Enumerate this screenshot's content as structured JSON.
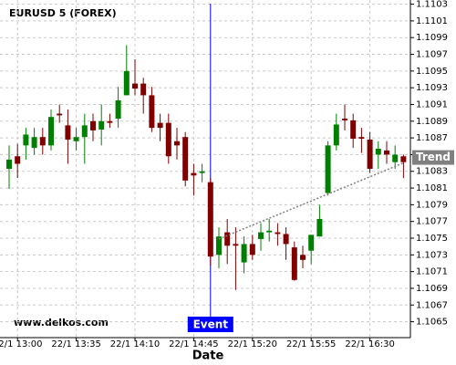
{
  "chart_data": {
    "type": "candlestick",
    "title": "EURUSD 5 (FOREX)",
    "xlabel": "Date",
    "watermark": "www.delkos.com",
    "categories": [
      null,
      "22/1 13:00",
      null,
      null,
      null,
      null,
      null,
      null,
      "22/1 13:35",
      null,
      null,
      null,
      null,
      null,
      null,
      "22/1 14:10",
      null,
      null,
      null,
      null,
      null,
      null,
      "22/1 14:45",
      null,
      null,
      null,
      null,
      null,
      null,
      "22/1 15:20",
      null,
      null,
      null,
      null,
      null,
      null,
      "22/1 15:55",
      null,
      null,
      null,
      null,
      null,
      null,
      "22/1 16:30",
      null,
      null,
      null,
      null
    ],
    "open": [
      1.10833,
      1.10848,
      1.10861,
      1.10858,
      1.10871,
      1.10861,
      1.10899,
      1.10885,
      1.10866,
      1.10871,
      1.1089,
      1.1088,
      1.1089,
      1.10893,
      1.10921,
      1.10935,
      1.10935,
      1.10921,
      1.10888,
      1.10888,
      1.10866,
      1.10871,
      1.10828,
      1.10828,
      1.10817,
      1.1073,
      1.10757,
      1.10743,
      1.10721,
      1.10743,
      1.10749,
      1.10757,
      1.10757,
      1.10755,
      1.10739,
      1.1073,
      1.10735,
      1.10752,
      1.10804,
      1.10861,
      1.10893,
      1.10891,
      1.10871,
      1.10868,
      1.1085,
      1.10855,
      1.10841,
      1.10848
    ],
    "high": [
      1.10861,
      1.10863,
      1.10882,
      1.10882,
      1.10882,
      1.10904,
      1.1091,
      1.10904,
      1.10882,
      1.10899,
      1.10899,
      1.1091,
      1.10899,
      1.10931,
      1.10981,
      1.10964,
      1.10942,
      1.10931,
      1.10899,
      1.10899,
      1.10882,
      1.10877,
      1.10839,
      1.10839,
      1.10822,
      1.10763,
      1.10773,
      1.10763,
      1.10752,
      1.10754,
      1.10768,
      1.10773,
      1.10768,
      1.10763,
      1.10746,
      1.10741,
      1.10754,
      1.1079,
      1.10866,
      1.10899,
      1.1091,
      1.10899,
      1.10882,
      1.10877,
      1.10866,
      1.10866,
      1.10861,
      1.1085
    ],
    "low": [
      1.10809,
      1.10822,
      1.10844,
      1.1085,
      1.1085,
      1.10855,
      1.10888,
      1.10839,
      1.10855,
      1.10839,
      1.10866,
      1.10861,
      1.10882,
      1.10882,
      1.10921,
      1.10921,
      1.10899,
      1.10877,
      1.10866,
      1.10839,
      1.10844,
      1.10812,
      1.10801,
      1.10817,
      1.10717,
      1.10714,
      1.10719,
      1.10688,
      1.10708,
      1.10724,
      1.10735,
      1.10746,
      1.10741,
      1.10724,
      1.10699,
      1.10714,
      1.10719,
      1.10752,
      1.10801,
      1.10855,
      1.10879,
      1.10858,
      1.10852,
      1.10828,
      1.10833,
      1.10839,
      1.10833,
      1.10822
    ],
    "close": [
      1.10844,
      1.10839,
      1.10874,
      1.10871,
      1.10861,
      1.10895,
      1.10897,
      1.10868,
      1.10871,
      1.10885,
      1.10879,
      1.1089,
      1.10888,
      1.10915,
      1.1095,
      1.10929,
      1.10921,
      1.10882,
      1.10882,
      1.10848,
      1.10861,
      1.10819,
      1.10825,
      1.1083,
      1.10728,
      1.10752,
      1.10741,
      1.10741,
      1.10743,
      1.1073,
      1.10757,
      1.10759,
      1.10755,
      1.10743,
      1.107,
      1.10724,
      1.10754,
      1.10773,
      1.10861,
      1.10886,
      1.10891,
      1.10869,
      1.10869,
      1.10833,
      1.10857,
      1.1085,
      1.1085,
      1.10841
    ],
    "up_color": "#008000",
    "down_color": "#800000",
    "ylim": [
      1.10631,
      1.11035
    ],
    "yticks": [
      1.1065,
      1.1067,
      1.1069,
      1.1071,
      1.1073,
      1.1075,
      1.1077,
      1.1079,
      1.1081,
      1.1083,
      1.1085,
      1.1087,
      1.1089,
      1.1091,
      1.1093,
      1.1095,
      1.1097,
      1.1099,
      1.1101,
      1.1103
    ],
    "grid": true,
    "event": {
      "label": "Event",
      "index": 24,
      "color": "#0000ff"
    },
    "trend": {
      "label": "Trend",
      "color": "#808080",
      "start": {
        "index": 25,
        "value": 1.10749
      },
      "end": {
        "index": 47,
        "value": 1.1084
      }
    }
  }
}
